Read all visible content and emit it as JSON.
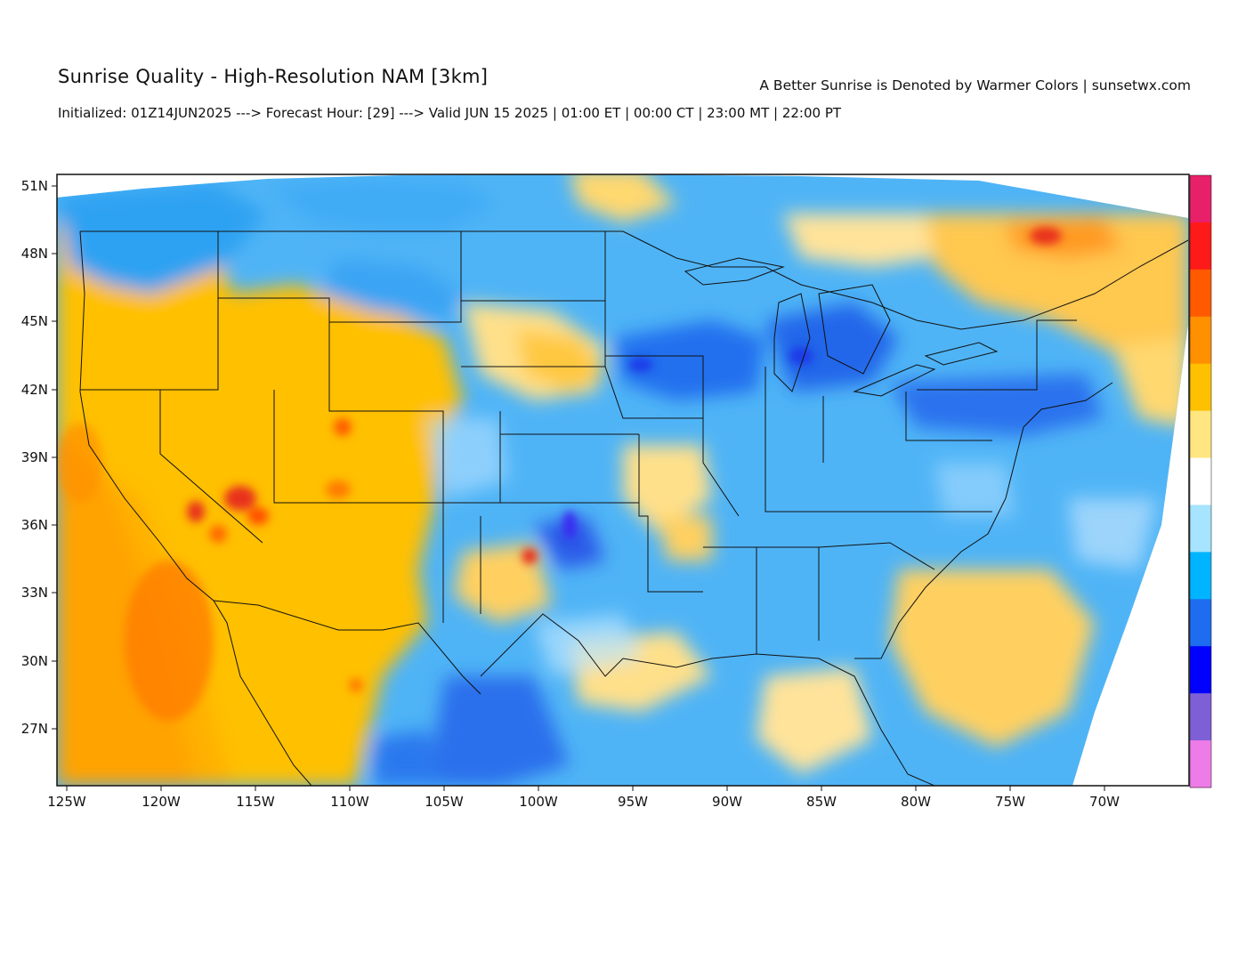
{
  "header": {
    "title": "Sunrise Quality - High-Resolution NAM [3km]",
    "credit": "A Better Sunrise is Denoted by Warmer Colors | sunsetwx.com",
    "subtitle": "Initialized: 01Z14JUN2025 ---> Forecast Hour: [29] ---> Valid JUN 15 2025 | 01:00 ET | 00:00 CT | 23:00 MT | 22:00 PT"
  },
  "map": {
    "lat_labels": [
      "51N",
      "48N",
      "45N",
      "42N",
      "39N",
      "36N",
      "33N",
      "30N",
      "27N"
    ],
    "lon_labels": [
      "125W",
      "120W",
      "115W",
      "110W",
      "105W",
      "100W",
      "95W",
      "90W",
      "85W",
      "80W",
      "75W",
      "70W"
    ],
    "colorbar": [
      "#e8206a",
      "#ff1a1a",
      "#ff5a00",
      "#ff9000",
      "#ffc000",
      "#ffe680",
      "#ffffff",
      "#a6e4ff",
      "#00b4ff",
      "#1e6cf0",
      "#0000ff",
      "#7f5fd6",
      "#ee7ce8"
    ],
    "colors": {
      "warm": "#ffc000",
      "light_warm": "#ffe08a",
      "orange": "#ff8a00",
      "red": "#e8321a",
      "cool": "#3aa8f5",
      "light_cool": "#a8dcff",
      "deep_blue": "#2050e6"
    }
  }
}
